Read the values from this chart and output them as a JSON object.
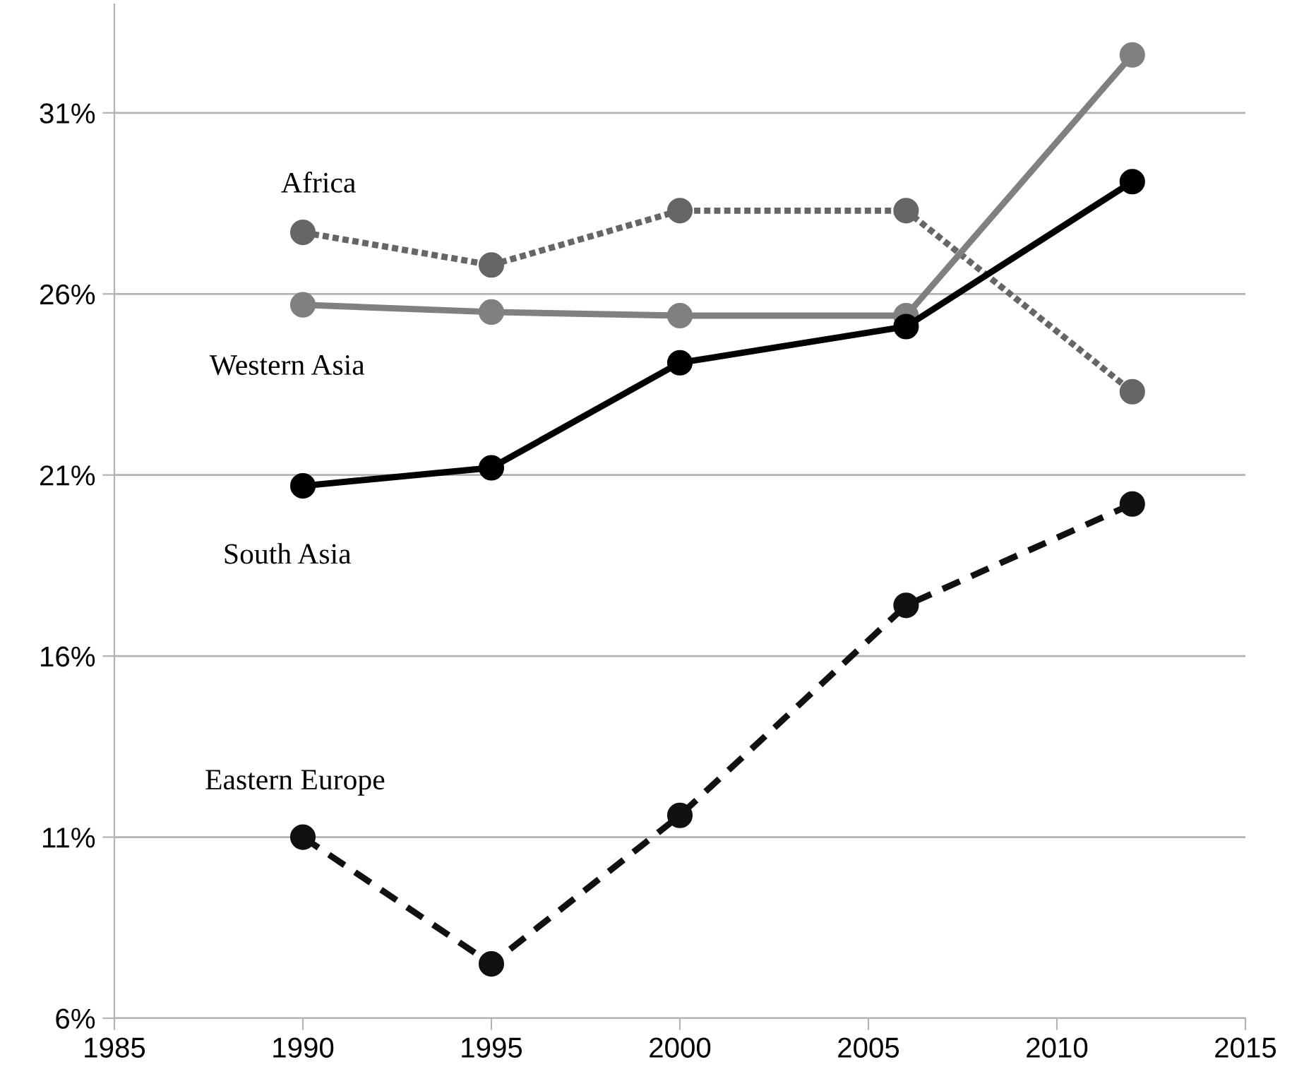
{
  "chart_data": {
    "type": "line",
    "x": [
      1990,
      1995,
      2000,
      2006,
      2012
    ],
    "series": [
      {
        "name": "Africa",
        "color": "#666666",
        "line_style": "dotted",
        "values": [
          27.7,
          26.8,
          28.3,
          28.3,
          23.3
        ]
      },
      {
        "name": "Western Asia",
        "color": "#808080",
        "line_style": "solid",
        "values": [
          25.7,
          25.5,
          25.4,
          25.4,
          32.6
        ]
      },
      {
        "name": "South Asia",
        "color": "#000000",
        "line_style": "solid",
        "values": [
          20.7,
          21.2,
          24.1,
          25.1,
          29.1
        ]
      },
      {
        "name": "Eastern Europe",
        "color": "#111111",
        "line_style": "dashed",
        "values": [
          11.0,
          7.5,
          11.6,
          17.4,
          20.2
        ]
      }
    ],
    "marker": "circle",
    "grid": "y",
    "legend": false,
    "xlim": [
      1985,
      2015
    ],
    "xticks": [
      1985,
      1990,
      1995,
      2000,
      2005,
      2010,
      2015
    ],
    "ylim": [
      6,
      34
    ],
    "yticks": [
      {
        "value": 6,
        "label": "6%"
      },
      {
        "value": 11,
        "label": "11%"
      },
      {
        "value": 16,
        "label": "16%"
      },
      {
        "value": 21,
        "label": "21%"
      },
      {
        "value": 26,
        "label": "26%"
      },
      {
        "value": 31,
        "label": "31%"
      }
    ]
  }
}
